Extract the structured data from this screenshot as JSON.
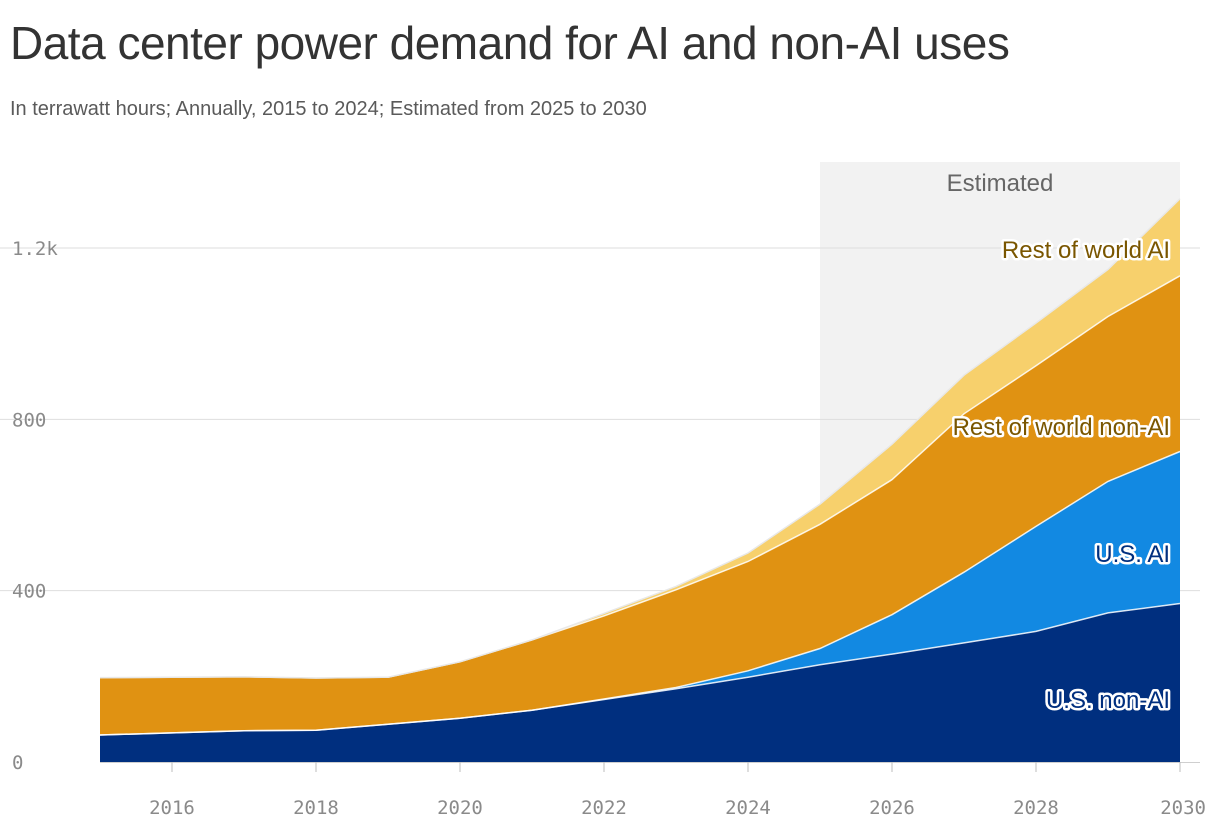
{
  "title": "Data center power demand for AI and non-AI uses",
  "subtitle": "In terrawatt hours; Annually, 2015 to 2024; Estimated from 2025 to 2030",
  "chart_data": {
    "type": "area",
    "stacked": true,
    "x": [
      2015,
      2016,
      2017,
      2018,
      2019,
      2020,
      2021,
      2022,
      2023,
      2024,
      2025,
      2026,
      2027,
      2028,
      2029,
      2030
    ],
    "series": [
      {
        "name": "U.S. non-AI",
        "color": "#002f7f",
        "label_color": "#002f7f",
        "values": [
          63,
          68,
          73,
          74,
          88,
          102,
          121,
          146,
          171,
          198,
          227,
          252,
          278,
          305,
          348,
          370
        ]
      },
      {
        "name": "U.S. AI",
        "color": "#1289e2",
        "label_color": "#002f7f",
        "values": [
          0,
          0,
          0,
          0,
          0,
          0,
          0,
          1,
          3,
          15,
          38,
          92,
          165,
          245,
          307,
          355
        ]
      },
      {
        "name": "Rest of world non-AI",
        "color": "#e09212",
        "label_color": "#7a5600",
        "values": [
          134,
          130,
          126,
          122,
          110,
          132,
          164,
          194,
          228,
          255,
          290,
          315,
          370,
          375,
          385,
          410
        ]
      },
      {
        "name": "Rest of world AI",
        "color": "#f7d06c",
        "label_color": "#7a5600",
        "values": [
          0,
          0,
          0,
          0,
          0,
          0,
          0,
          6,
          8,
          20,
          47,
          83,
          90,
          100,
          110,
          180
        ]
      }
    ],
    "xticks": [
      "2016",
      "2018",
      "2020",
      "2022",
      "2024",
      "2026",
      "2028",
      "2030"
    ],
    "xtick_values": [
      2016,
      2018,
      2020,
      2022,
      2024,
      2026,
      2028,
      2030
    ],
    "yticks": [
      "0",
      "400",
      "800",
      "1.2k"
    ],
    "ytick_values": [
      0,
      400,
      800,
      1200
    ],
    "xlim": [
      2015,
      2030
    ],
    "ylim": [
      0,
      1400
    ],
    "estimated_region": {
      "from": 2025,
      "to": 2030,
      "label": "Estimated"
    },
    "grid": true
  }
}
